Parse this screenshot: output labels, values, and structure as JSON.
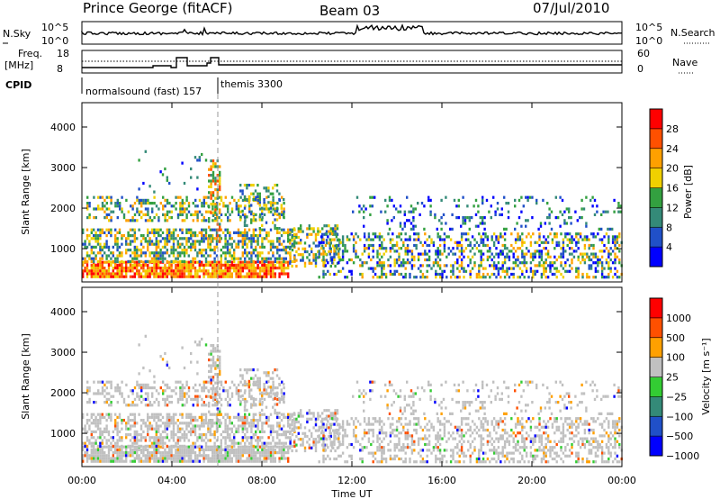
{
  "header": {
    "station": "Prince George (fitACF)",
    "beam": "Beam 03",
    "date": "07/Jul/2010"
  },
  "panels": {
    "nsky_label": "N.Sky",
    "nsky_ticks": [
      "10^5",
      "10^0"
    ],
    "nsearch_label": "N.Search",
    "nsearch_ticks": [
      "10^5",
      "10^0"
    ],
    "freq_label": "Freq.",
    "freq_unit": "[MHz]",
    "freq_ticks": [
      "18",
      "8"
    ],
    "nave_label": "Nave",
    "nave_ticks": [
      "60",
      "0"
    ],
    "cpid_label": "CPID",
    "cpid_segments": [
      "normalsound (fast) 157",
      "themis 3300"
    ]
  },
  "chart_data": [
    {
      "type": "heatmap",
      "name": "power",
      "ylabel": "Slant Range [km]",
      "ylim": [
        180,
        4600
      ],
      "yticks": [
        "4000",
        "3000",
        "2000",
        "1000"
      ],
      "yvals": [
        4000,
        3000,
        2000,
        1000
      ],
      "xlim": [
        0,
        24
      ],
      "colorbar": {
        "label": "Power [dB]",
        "ticks": [
          "28",
          "24",
          "20",
          "16",
          "12",
          "8",
          "4"
        ],
        "colors": [
          "#0000ff",
          "#2050c8",
          "#348a78",
          "#33a040",
          "#f0d000",
          "#ffa000",
          "#ff5000",
          "#ff0000"
        ]
      }
    },
    {
      "type": "heatmap",
      "name": "velocity",
      "ylabel": "Slant Range [km]",
      "ylim": [
        180,
        4600
      ],
      "yticks": [
        "4000",
        "3000",
        "2000",
        "1000"
      ],
      "yvals": [
        4000,
        3000,
        2000,
        1000
      ],
      "xlim": [
        0,
        24
      ],
      "xlabel": "Time UT",
      "xticks": [
        "00:00",
        "04:00",
        "08:00",
        "12:00",
        "16:00",
        "20:00",
        "00:00"
      ],
      "colorbar": {
        "label": "Velocity [m s⁻¹]",
        "ticks": [
          "1000",
          "500",
          "100",
          "25",
          "−25",
          "−100",
          "−500",
          "−1000"
        ],
        "colors": [
          "#0000ff",
          "#2050c8",
          "#348a78",
          "#33cc33",
          "#c0c0c0",
          "#ffa000",
          "#ff5000",
          "#ff0000"
        ]
      }
    }
  ]
}
